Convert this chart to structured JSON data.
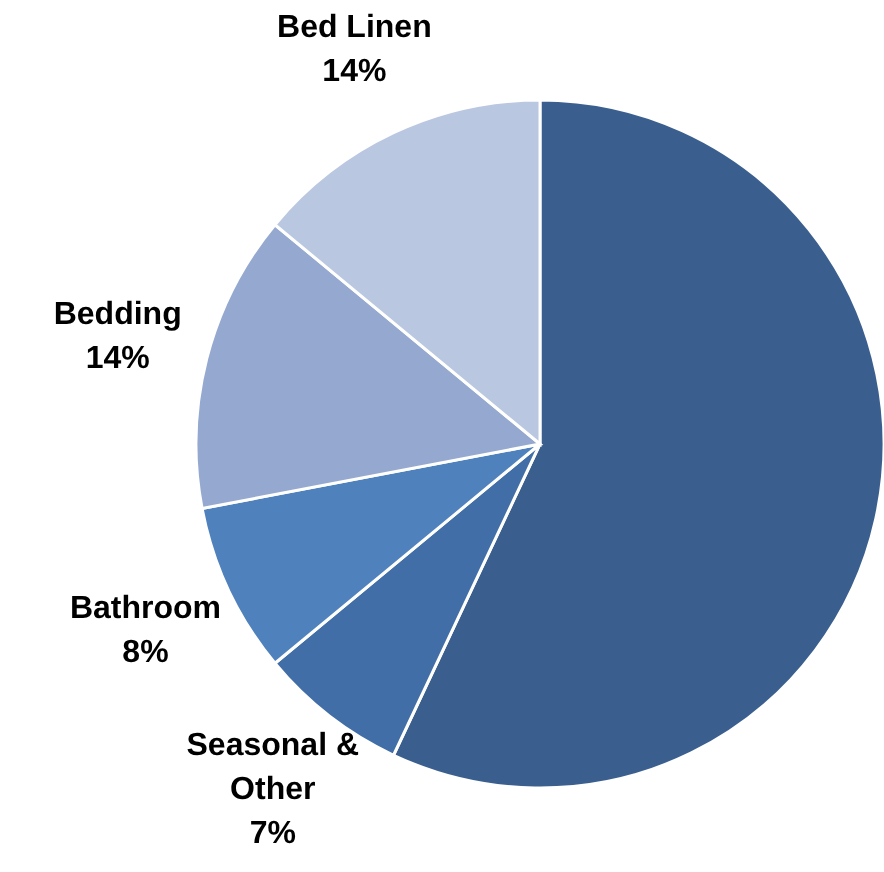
{
  "chart_data": {
    "type": "pie",
    "categories": [
      null,
      "Seasonal & Other",
      "Bathroom",
      "Bedding",
      "Bed Linen"
    ],
    "values": [
      57,
      7,
      8,
      14,
      14
    ],
    "value_labels": [
      null,
      "7%",
      "8%",
      "14%",
      "14%"
    ],
    "colors": [
      "#3a5f8f",
      "#416ea6",
      "#4f81bd",
      "#95a9d0",
      "#b9c7e0"
    ]
  }
}
